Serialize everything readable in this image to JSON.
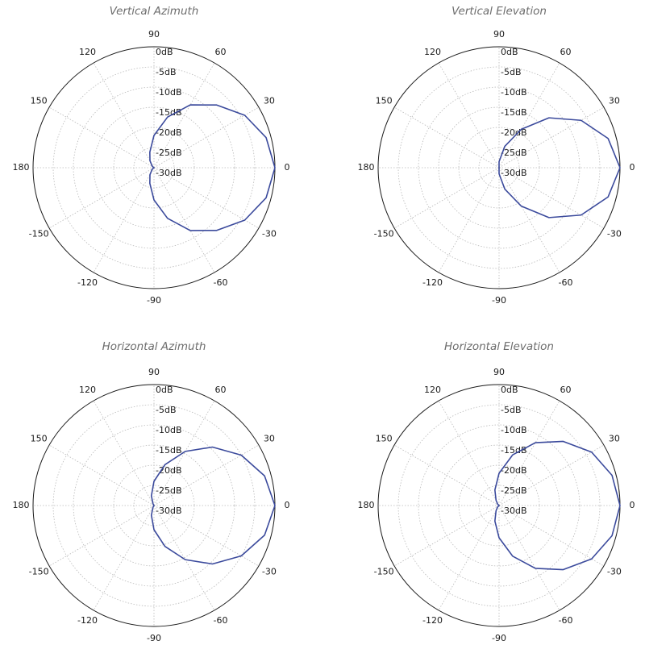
{
  "chart_data": [
    {
      "type": "polar-line",
      "title": "Vertical Azimuth",
      "radial_unit": "dB",
      "radial_range": [
        -30,
        0
      ],
      "radial_ticks": [
        "0dB",
        "-5dB",
        "-10dB",
        "-15dB",
        "-20dB",
        "-25dB",
        "-30dB"
      ],
      "angle_ticks": [
        "0",
        "30",
        "60",
        "90",
        "120",
        "150",
        "180",
        "-150",
        "-120",
        "-90",
        "-60",
        "-30"
      ],
      "grid": true,
      "series": [
        {
          "angles_deg": [
            0,
            15,
            30,
            45,
            60,
            75,
            90,
            105,
            120,
            135,
            150,
            165,
            180,
            195,
            210,
            225,
            240,
            255,
            270,
            285,
            300,
            315,
            330,
            345
          ],
          "values_db": [
            0,
            -1.2,
            -4,
            -8,
            -12,
            -17,
            -22,
            -26,
            -28,
            -29.3,
            -29.8,
            -30,
            -30,
            -30,
            -29.8,
            -29.3,
            -28,
            -26,
            -22,
            -17,
            -12,
            -8,
            -4,
            -1.2
          ]
        }
      ]
    },
    {
      "type": "polar-line",
      "title": "Vertical Elevation",
      "radial_unit": "dB",
      "radial_range": [
        -30,
        0
      ],
      "radial_ticks": [
        "0dB",
        "-5dB",
        "-10dB",
        "-15dB",
        "-20dB",
        "-25dB",
        "-30dB"
      ],
      "angle_ticks": [
        "0",
        "30",
        "60",
        "90",
        "120",
        "150",
        "180",
        "-150",
        "-120",
        "-90",
        "-60",
        "-30"
      ],
      "grid": true,
      "series": [
        {
          "angles_deg": [
            0,
            15,
            30,
            45,
            60,
            75,
            90,
            105,
            120,
            135,
            150,
            165,
            180,
            195,
            210,
            225,
            240,
            255,
            270,
            285,
            300,
            315,
            330,
            345
          ],
          "values_db": [
            0,
            -2,
            -6.5,
            -12.5,
            -19,
            -24.5,
            -28.5,
            -30,
            -30,
            -30,
            -30,
            -30,
            -30,
            -30,
            -30,
            -30,
            -30,
            -30,
            -28.5,
            -24.5,
            -19,
            -12.5,
            -6.5,
            -2
          ]
        }
      ]
    },
    {
      "type": "polar-line",
      "title": "Horizontal Azimuth",
      "radial_unit": "dB",
      "radial_range": [
        -30,
        0
      ],
      "radial_ticks": [
        "0dB",
        "-5dB",
        "-10dB",
        "-15dB",
        "-20dB",
        "-25dB",
        "-30dB"
      ],
      "angle_ticks": [
        "0",
        "30",
        "60",
        "90",
        "120",
        "150",
        "180",
        "-150",
        "-120",
        "-90",
        "-60",
        "-30"
      ],
      "grid": true,
      "series": [
        {
          "angles_deg": [
            0,
            15,
            30,
            45,
            60,
            75,
            90,
            105,
            120,
            135,
            150,
            165,
            180,
            195,
            210,
            225,
            240,
            255,
            270,
            285,
            300,
            315,
            330,
            345
          ],
          "values_db": [
            0,
            -1.6,
            -5,
            -9.5,
            -14.5,
            -19.5,
            -24,
            -27.5,
            -29.5,
            -30,
            -30,
            -30,
            -30,
            -30,
            -30,
            -30,
            -29.5,
            -27.5,
            -24,
            -19.5,
            -14.5,
            -9.5,
            -5,
            -1.6
          ]
        }
      ]
    },
    {
      "type": "polar-line",
      "title": "Horizontal Elevation",
      "radial_unit": "dB",
      "radial_range": [
        -30,
        0
      ],
      "radial_ticks": [
        "0dB",
        "-5dB",
        "-10dB",
        "-15dB",
        "-20dB",
        "-25dB",
        "-30dB"
      ],
      "angle_ticks": [
        "0",
        "30",
        "60",
        "90",
        "120",
        "150",
        "180",
        "-150",
        "-120",
        "-90",
        "-60",
        "-30"
      ],
      "grid": true,
      "series": [
        {
          "angles_deg": [
            0,
            15,
            30,
            45,
            60,
            75,
            90,
            105,
            120,
            135,
            150,
            165,
            180,
            195,
            210,
            225,
            240,
            255,
            270,
            285,
            300,
            315,
            330,
            345
          ],
          "values_db": [
            0,
            -1,
            -3.5,
            -7.5,
            -12,
            -17,
            -22,
            -26,
            -28.5,
            -29.5,
            -30,
            -30,
            -30,
            -30,
            -30,
            -29.5,
            -28.5,
            -26,
            -22,
            -17,
            -12,
            -7.5,
            -3.5,
            -1
          ]
        }
      ]
    }
  ],
  "colors": {
    "trace": "#3b4a9c",
    "grid": "#b9b9b9",
    "frame": "#1a1a1a",
    "title": "#6d6d6d"
  }
}
